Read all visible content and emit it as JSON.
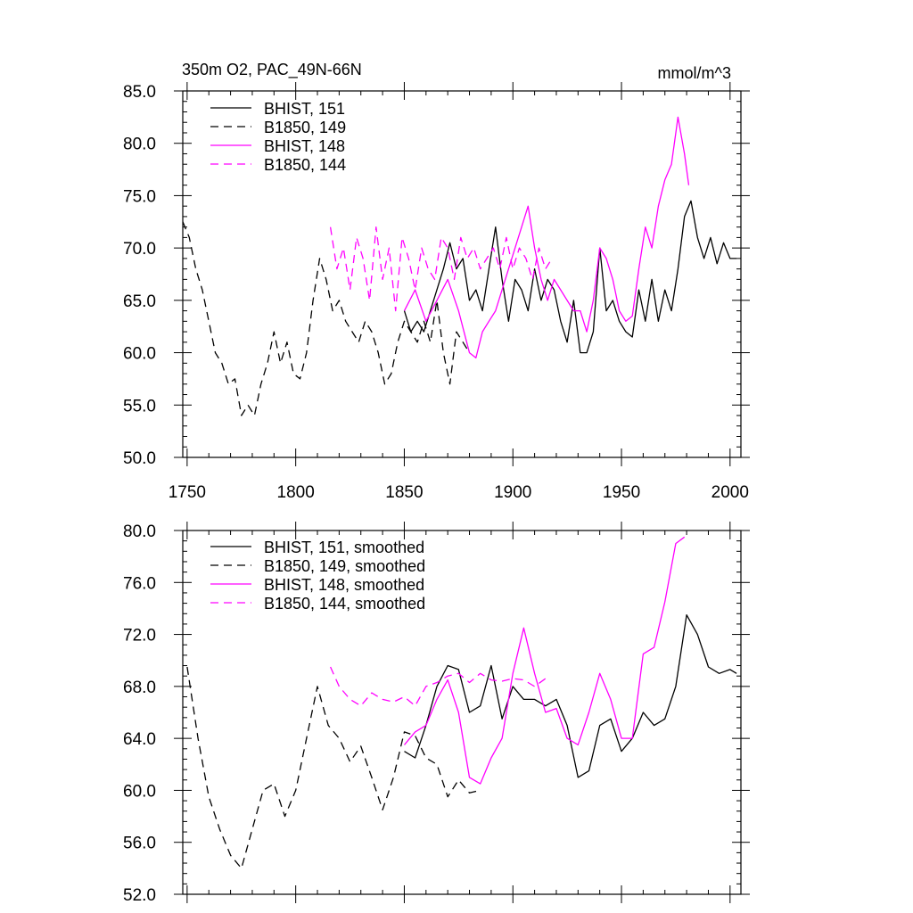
{
  "chart_data": [
    {
      "type": "line",
      "title": "350m O2, PAC_49N-66N",
      "units": "mmol/m^3",
      "xlabel": "",
      "ylabel": "",
      "xlim": [
        1748,
        2005
      ],
      "ylim": [
        50,
        85
      ],
      "xticks": [
        1750,
        1800,
        1850,
        1900,
        1950,
        2000
      ],
      "xtick_labels": [
        "1750",
        "1800",
        "1850",
        "1900",
        "1950",
        "2000"
      ],
      "yticks": [
        50,
        55,
        60,
        65,
        70,
        75,
        80,
        85
      ],
      "ytick_labels": [
        "50.0",
        "55.0",
        "60.0",
        "65.0",
        "70.0",
        "75.0",
        "80.0",
        "85.0"
      ],
      "legend_position": "top-left",
      "series": [
        {
          "name": "BHIST, 151",
          "color": "#000000",
          "dash": "solid",
          "x": [
            1850,
            1853,
            1856,
            1859,
            1862,
            1865,
            1868,
            1871,
            1874,
            1877,
            1880,
            1883,
            1886,
            1889,
            1892,
            1895,
            1898,
            1901,
            1904,
            1907,
            1910,
            1913,
            1916,
            1919,
            1922,
            1925,
            1928,
            1931,
            1934,
            1937,
            1940,
            1943,
            1946,
            1949,
            1952,
            1955,
            1958,
            1961,
            1964,
            1967,
            1970,
            1973,
            1976,
            1979,
            1982,
            1985,
            1988,
            1991,
            1994,
            1997,
            2000,
            2003
          ],
          "y": [
            64,
            62,
            63,
            62,
            64,
            66,
            68,
            70.5,
            68,
            69,
            65,
            66,
            64,
            68,
            72,
            67,
            63,
            67,
            66,
            64,
            68,
            65,
            67,
            66,
            63,
            61,
            65,
            60,
            60,
            62,
            70,
            64,
            65,
            63,
            62,
            61.5,
            66,
            63,
            67,
            63,
            66,
            64,
            68,
            73,
            74.5,
            71,
            69,
            71,
            68.5,
            70.5,
            69,
            69
          ]
        },
        {
          "name": "B1850, 149",
          "color": "#000000",
          "dash": "dashed",
          "x": [
            1748,
            1751,
            1754,
            1757,
            1760,
            1763,
            1766,
            1769,
            1772,
            1775,
            1778,
            1781,
            1784,
            1787,
            1790,
            1793,
            1796,
            1799,
            1802,
            1805,
            1808,
            1811,
            1814,
            1817,
            1820,
            1823,
            1826,
            1829,
            1832,
            1835,
            1838,
            1841,
            1844,
            1847,
            1850,
            1853,
            1856,
            1859,
            1862,
            1865,
            1868,
            1871,
            1874,
            1877,
            1880
          ],
          "y": [
            72.5,
            71,
            68,
            66,
            63,
            60,
            59,
            57,
            57.5,
            54,
            55,
            54,
            57,
            59,
            62,
            59,
            61,
            58,
            57.5,
            60,
            65,
            69,
            67,
            64,
            65,
            63,
            62,
            61,
            63,
            62,
            60,
            57,
            58,
            61,
            63,
            62,
            61,
            63,
            61,
            65,
            60,
            57,
            62,
            61,
            60
          ]
        },
        {
          "name": "BHIST, 148",
          "color": "#ff00ff",
          "dash": "solid",
          "x": [
            1850,
            1855,
            1860,
            1865,
            1870,
            1875,
            1880,
            1883,
            1886,
            1889,
            1892,
            1895,
            1898,
            1901,
            1904,
            1907,
            1910,
            1913,
            1916,
            1919,
            1922,
            1925,
            1928,
            1931,
            1934,
            1937,
            1940,
            1943,
            1946,
            1949,
            1952,
            1955,
            1958,
            1961,
            1964,
            1967,
            1970,
            1973,
            1976,
            1979,
            1981
          ],
          "y": [
            64,
            66,
            63,
            65,
            67,
            64,
            60,
            59.5,
            62,
            63,
            64,
            66,
            68,
            70,
            72,
            74,
            70,
            67,
            65,
            67,
            66,
            65,
            64,
            64,
            62,
            65,
            70,
            69,
            67,
            64,
            63,
            63.5,
            68,
            72,
            70,
            74,
            76.5,
            78,
            82.5,
            79,
            76
          ]
        },
        {
          "name": "B1850, 144",
          "color": "#ff00ff",
          "dash": "dashed",
          "x": [
            1816,
            1819,
            1822,
            1825,
            1828,
            1831,
            1834,
            1837,
            1840,
            1843,
            1846,
            1849,
            1852,
            1855,
            1858,
            1861,
            1864,
            1867,
            1870,
            1873,
            1876,
            1879,
            1882,
            1885,
            1888,
            1891,
            1894,
            1897,
            1900,
            1903,
            1906,
            1909,
            1912,
            1915,
            1918
          ],
          "y": [
            72,
            68,
            70,
            66,
            71,
            69,
            65,
            72,
            67,
            70,
            64,
            71,
            69,
            66,
            70,
            68,
            67,
            71,
            70,
            67,
            71,
            69,
            70,
            68,
            69,
            70,
            68,
            71,
            68,
            70,
            69,
            67,
            70,
            68,
            69
          ]
        }
      ]
    },
    {
      "type": "line",
      "title": "",
      "xlabel": "",
      "ylabel": "",
      "xlim": [
        1748,
        2005
      ],
      "ylim": [
        52,
        80
      ],
      "xticks": [
        1750,
        1800,
        1850,
        1900,
        1950,
        2000
      ],
      "yticks": [
        52,
        56,
        60,
        64,
        68,
        72,
        76,
        80
      ],
      "ytick_labels": [
        "52.0",
        "56.0",
        "60.0",
        "64.0",
        "68.0",
        "72.0",
        "76.0",
        "80.0"
      ],
      "legend_position": "top-left",
      "series": [
        {
          "name": "BHIST, 151, smoothed",
          "color": "#000000",
          "dash": "solid",
          "x": [
            1850,
            1855,
            1860,
            1865,
            1870,
            1875,
            1880,
            1885,
            1890,
            1895,
            1900,
            1905,
            1910,
            1915,
            1920,
            1925,
            1930,
            1935,
            1940,
            1945,
            1950,
            1955,
            1960,
            1965,
            1970,
            1975,
            1980,
            1985,
            1990,
            1995,
            2000,
            2003
          ],
          "y": [
            63,
            62.5,
            65,
            68,
            69.6,
            69.3,
            66,
            66.5,
            69.6,
            65.5,
            68,
            67,
            67,
            66.5,
            67,
            65,
            61,
            61.5,
            65,
            65.5,
            63,
            64,
            66,
            65,
            65.5,
            68,
            73.5,
            72,
            69.5,
            69,
            69.3,
            69
          ]
        },
        {
          "name": "B1850, 149, smoothed",
          "color": "#000000",
          "dash": "dashed",
          "x": [
            1750,
            1755,
            1760,
            1765,
            1770,
            1775,
            1780,
            1785,
            1790,
            1795,
            1800,
            1805,
            1810,
            1815,
            1820,
            1825,
            1830,
            1835,
            1840,
            1845,
            1850,
            1855,
            1860,
            1865,
            1870,
            1875,
            1880,
            1885
          ],
          "y": [
            69.5,
            64,
            59.5,
            57,
            55,
            54,
            57,
            60,
            60.5,
            58,
            60,
            64,
            68,
            65,
            64,
            62.2,
            63.4,
            61,
            58.5,
            61,
            64.5,
            64.2,
            62.5,
            62,
            59.5,
            60.8,
            59.8,
            60
          ]
        },
        {
          "name": "BHIST, 148, smoothed",
          "color": "#ff00ff",
          "dash": "solid",
          "x": [
            1850,
            1855,
            1860,
            1865,
            1870,
            1875,
            1880,
            1885,
            1890,
            1895,
            1900,
            1905,
            1910,
            1915,
            1920,
            1925,
            1930,
            1935,
            1940,
            1945,
            1950,
            1955,
            1960,
            1965,
            1970,
            1975,
            1979
          ],
          "y": [
            63.5,
            64.5,
            65,
            67,
            68.5,
            66,
            61,
            60.5,
            62.5,
            64,
            69,
            72.5,
            69,
            66,
            66.3,
            64,
            63.5,
            66,
            69,
            67,
            64,
            64,
            70.5,
            71,
            74.5,
            79,
            79.5
          ]
        },
        {
          "name": "B1850, 144, smoothed",
          "color": "#ff00ff",
          "dash": "dashed",
          "x": [
            1816,
            1820,
            1825,
            1830,
            1835,
            1840,
            1845,
            1850,
            1855,
            1860,
            1865,
            1870,
            1875,
            1880,
            1885,
            1890,
            1895,
            1900,
            1905,
            1910,
            1915
          ],
          "y": [
            69.5,
            68,
            67,
            66.5,
            67.5,
            67,
            66.8,
            67.2,
            66.5,
            68,
            68.3,
            68.8,
            69,
            68.3,
            69,
            68.5,
            68.4,
            68.6,
            68.5,
            68,
            68.6
          ]
        }
      ]
    }
  ]
}
